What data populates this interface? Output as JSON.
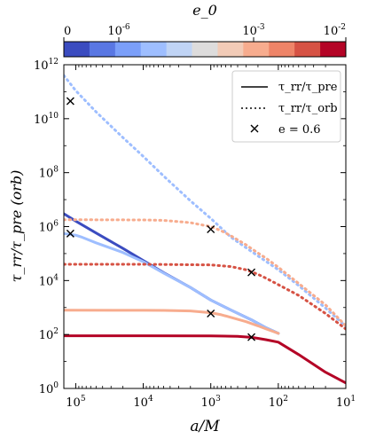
{
  "chart_data": {
    "type": "line",
    "xlabel": "a/M",
    "ylabel": "τ_rr/τ_pre (orb)",
    "x_scale": "log",
    "y_scale": "log",
    "x_inverted": true,
    "xlim": [
      150000,
      10
    ],
    "ylim": [
      1,
      1000000000000.0
    ],
    "grid": false,
    "legend_placement": "top-right",
    "legend": [
      {
        "name": "τ_rr/τ_pre",
        "style": "solid"
      },
      {
        "name": "τ_rr/τ_orb",
        "style": "dotted"
      },
      {
        "name": "e = 0.6",
        "style": "cross-marker"
      }
    ],
    "colorbar": {
      "label": "e_0",
      "orientation": "horizontal",
      "placement": "top",
      "ticks": [
        "0",
        "10^{-6}",
        "10^{-3}",
        "10^{-2}"
      ],
      "colors": [
        "#3b4cc0",
        "#5977e3",
        "#7b9ff9",
        "#9ebeff",
        "#c0d4f5",
        "#dddcdc",
        "#f2cbb7",
        "#f7ac8e",
        "#ee8468",
        "#d65244",
        "#b40426"
      ]
    },
    "x_tick_labels": [
      "10^5",
      "10^4",
      "10^3",
      "10^2",
      "10^1"
    ],
    "y_tick_labels": [
      "10^0",
      "10^2",
      "10^4",
      "10^6",
      "10^8",
      "10^10",
      "10^12"
    ],
    "series": [
      {
        "style": "solid",
        "color": "#3b4cc0",
        "x": [
          150000,
          100000,
          50000,
          20000,
          10000,
          5000,
          2000,
          1000,
          500,
          250,
          150,
          100
        ],
        "y": [
          3000000,
          1600000,
          580000,
          155000,
          55000,
          19600,
          5500,
          1900,
          800,
          350,
          175,
          110
        ]
      },
      {
        "style": "solid",
        "color": "#9ebeff",
        "x": [
          150000,
          100000,
          80000,
          50000,
          20000,
          10000,
          5000,
          2000,
          1000,
          500,
          250,
          150,
          100
        ],
        "y": [
          550000,
          480000,
          400000,
          250000,
          110000,
          50000,
          19000,
          5500,
          1900,
          800,
          350,
          175,
          110
        ]
      },
      {
        "style": "solid",
        "color": "#f7ac8e",
        "x": [
          150000,
          10000,
          5000,
          2000,
          1000,
          700,
          500,
          300,
          200,
          150,
          100
        ],
        "y": [
          800,
          790,
          780,
          750,
          640,
          540,
          430,
          300,
          210,
          160,
          110
        ]
      },
      {
        "style": "solid",
        "color": "#b40426",
        "x": [
          150000,
          10000,
          1000,
          400,
          250,
          200,
          150,
          100,
          50,
          20,
          10
        ],
        "y": [
          90,
          90,
          89,
          85,
          78,
          72,
          64,
          52,
          18,
          4,
          1.6
        ]
      },
      {
        "style": "dotted",
        "color": "#9ebeff",
        "x": [
          150000,
          100000,
          50000,
          20000,
          10000,
          5000,
          2000,
          1000,
          500,
          250,
          100,
          50,
          20,
          10
        ],
        "y": [
          400000000000,
          110000000000,
          18000000000,
          2000000000,
          400000000,
          75000000,
          9000000,
          2000000,
          400000,
          120000,
          25000,
          6500,
          950,
          200
        ]
      },
      {
        "style": "dotted",
        "color": "#f7ac8e",
        "x": [
          150000,
          10000,
          5000,
          2000,
          1000,
          700,
          500,
          300,
          200,
          150,
          100,
          50,
          20,
          10
        ],
        "y": [
          1800000,
          1760000,
          1700000,
          1400000,
          1000000,
          700000,
          450000,
          210000,
          105000,
          66000,
          31000,
          7800,
          1250,
          210
        ]
      },
      {
        "style": "dotted",
        "color": "#d65244",
        "x": [
          150000,
          10000,
          1000,
          500,
          300,
          250,
          200,
          150,
          100,
          50,
          20,
          10
        ],
        "y": [
          40000,
          40000,
          38000,
          33000,
          25000,
          21000,
          17000,
          12000,
          7000,
          2800,
          600,
          160
        ]
      }
    ],
    "markers_e06": {
      "marker": "x",
      "x": [
        120000,
        120000,
        1000,
        1000,
        250,
        250
      ],
      "y": [
        45000000000,
        550000,
        800000,
        600,
        20000,
        80
      ]
    }
  }
}
